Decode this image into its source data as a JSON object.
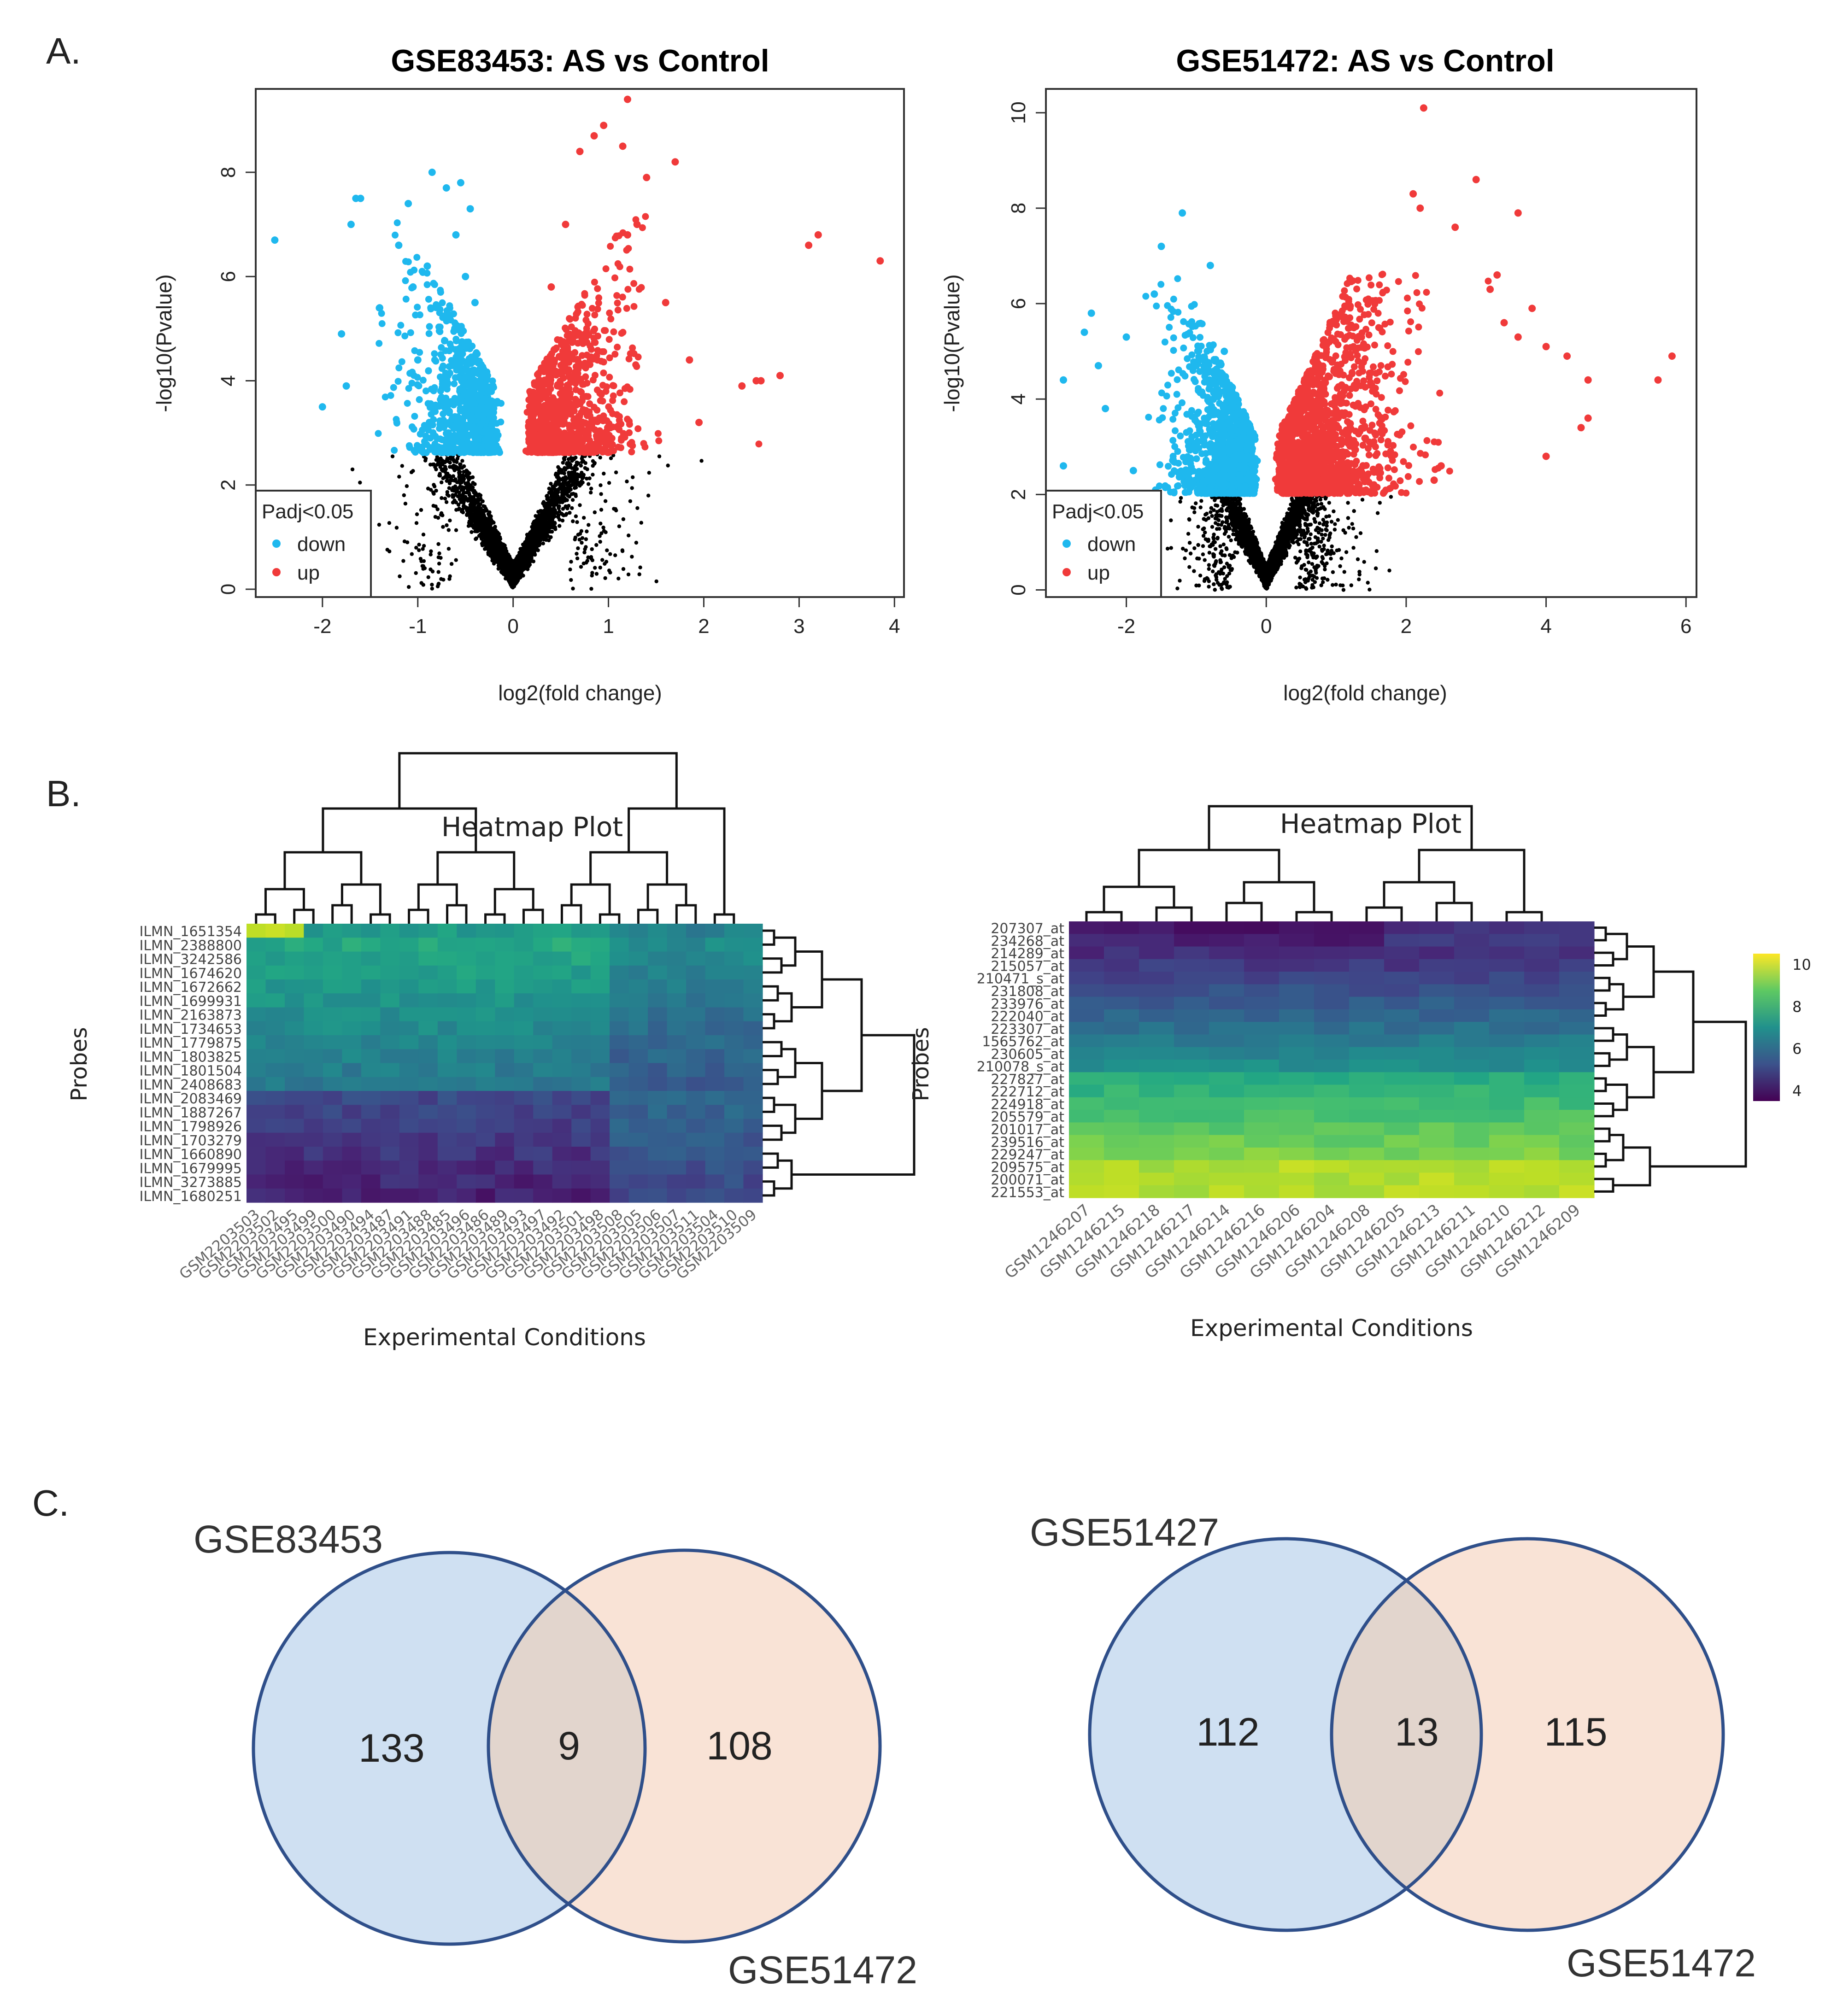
{
  "figure": {
    "panel_labels": [
      "A.",
      "B.",
      "C."
    ]
  },
  "chart_data": [
    {
      "type": "scatter",
      "name": "volcano-gse83453",
      "title": "GSE83453: AS vs Control",
      "xlabel": "log2(fold change)",
      "ylabel": "-log10(Pvalue)",
      "xlim": [
        -2.7,
        4.1
      ],
      "ylim": [
        -0.15,
        9.6
      ],
      "xticks": [
        -2,
        -1,
        0,
        1,
        2,
        3,
        4
      ],
      "yticks": [
        0,
        2,
        4,
        6,
        8
      ],
      "threshold_p": 2.6,
      "legend": {
        "title": "Padj<0.05",
        "entries": [
          "down",
          "up"
        ],
        "position": "bottom-left"
      },
      "colors": {
        "down": "#1fb8ee",
        "up": "#f03a3a",
        "ns": "#000000"
      },
      "series": [
        {
          "name": "down",
          "points": [
            [
              -2.5,
              6.7
            ],
            [
              -2.0,
              3.5
            ],
            [
              -1.8,
              4.9
            ],
            [
              -1.75,
              3.9
            ],
            [
              -1.65,
              7.5
            ],
            [
              -1.7,
              7.0
            ],
            [
              -1.6,
              7.5
            ],
            [
              -1.4,
              5.4
            ],
            [
              -1.2,
              6.6
            ],
            [
              -1.1,
              7.4
            ],
            [
              -1.05,
              5.8
            ],
            [
              -1.0,
              4.4
            ],
            [
              -0.9,
              6.2
            ],
            [
              -0.85,
              8.0
            ],
            [
              -0.7,
              7.7
            ],
            [
              -0.6,
              6.8
            ],
            [
              -0.55,
              7.8
            ],
            [
              -0.5,
              6.0
            ],
            [
              -0.45,
              7.3
            ],
            [
              -0.4,
              5.5
            ]
          ],
          "count": 750
        },
        {
          "name": "up",
          "points": [
            [
              3.85,
              6.3
            ],
            [
              3.2,
              6.8
            ],
            [
              3.1,
              6.6
            ],
            [
              2.8,
              4.1
            ],
            [
              2.6,
              4.0
            ],
            [
              2.55,
              4.0
            ],
            [
              2.4,
              3.9
            ],
            [
              1.95,
              3.2
            ],
            [
              1.85,
              4.4
            ],
            [
              1.7,
              8.2
            ],
            [
              1.6,
              5.5
            ],
            [
              1.4,
              7.9
            ],
            [
              1.3,
              7.0
            ],
            [
              1.2,
              6.8
            ],
            [
              1.15,
              8.5
            ],
            [
              0.95,
              8.9
            ],
            [
              0.85,
              8.7
            ],
            [
              0.7,
              8.4
            ],
            [
              0.55,
              7.0
            ],
            [
              0.4,
              5.8
            ],
            [
              1.2,
              9.4
            ]
          ],
          "count": 850
        }
      ]
    },
    {
      "type": "scatter",
      "name": "volcano-gse51472",
      "title": "GSE51472: AS vs Control",
      "xlabel": "log2(fold change)",
      "ylabel": "-log10(Pvalue)",
      "xlim": [
        -3.15,
        6.15
      ],
      "ylim": [
        -0.15,
        10.5
      ],
      "xticks": [
        -2,
        0,
        2,
        4,
        6
      ],
      "yticks": [
        0,
        2,
        4,
        6,
        8,
        10
      ],
      "threshold_p": 2.0,
      "legend": {
        "title": "Padj<0.05",
        "entries": [
          "down",
          "up"
        ],
        "position": "bottom-left"
      },
      "colors": {
        "down": "#1fb8ee",
        "up": "#f03a3a",
        "ns": "#000000"
      },
      "series": [
        {
          "name": "down",
          "points": [
            [
              -2.9,
              2.6
            ],
            [
              -2.9,
              4.4
            ],
            [
              -2.6,
              5.4
            ],
            [
              -2.5,
              5.8
            ],
            [
              -2.4,
              4.7
            ],
            [
              -2.3,
              3.8
            ],
            [
              -2.0,
              5.3
            ],
            [
              -1.9,
              2.5
            ],
            [
              -1.6,
              6.2
            ],
            [
              -1.5,
              7.2
            ],
            [
              -1.2,
              7.9
            ],
            [
              -0.8,
              6.8
            ],
            [
              -0.6,
              5.0
            ]
          ],
          "count": 1100
        },
        {
          "name": "up",
          "points": [
            [
              2.25,
              10.1
            ],
            [
              2.1,
              8.3
            ],
            [
              2.2,
              8.0
            ],
            [
              2.7,
              7.6
            ],
            [
              3.0,
              8.6
            ],
            [
              3.6,
              7.9
            ],
            [
              3.3,
              6.6
            ],
            [
              3.2,
              6.3
            ],
            [
              3.4,
              5.6
            ],
            [
              3.8,
              5.9
            ],
            [
              3.6,
              5.3
            ],
            [
              4.0,
              5.1
            ],
            [
              4.3,
              4.9
            ],
            [
              4.6,
              4.4
            ],
            [
              4.6,
              3.6
            ],
            [
              5.6,
              4.4
            ],
            [
              5.8,
              4.9
            ],
            [
              4.5,
              3.4
            ],
            [
              4.0,
              2.8
            ],
            [
              2.4,
              2.3
            ],
            [
              2.5,
              2.6
            ]
          ],
          "count": 1400
        }
      ]
    },
    {
      "type": "heatmap",
      "name": "heatmap-gse83453",
      "title": "Heatmap Plot",
      "xlabel": "Experimental Conditions",
      "ylabel": "Probes",
      "rows": [
        "ILMN_1651354",
        "ILMN_2388800",
        "ILMN_3242586",
        "ILMN_1674620",
        "ILMN_1672662",
        "ILMN_1699931",
        "ILMN_2163873",
        "ILMN_1734653",
        "ILMN_1779875",
        "ILMN_1803825",
        "ILMN_1801504",
        "ILMN_2408683",
        "ILMN_2083469",
        "ILMN_1887267",
        "ILMN_1798926",
        "ILMN_1703279",
        "ILMN_1660890",
        "ILMN_1679995",
        "ILMN_3273885",
        "ILMN_1680251"
      ],
      "columns": [
        "GSM2203503",
        "GSM2203502",
        "GSM2203495",
        "GSM2203499",
        "GSM2203500",
        "GSM2203490",
        "GSM2203494",
        "GSM2203487",
        "GSM2203491",
        "GSM2203488",
        "GSM2203485",
        "GSM2203496",
        "GSM2203486",
        "GSM2203489",
        "GSM2203493",
        "GSM2203497",
        "GSM2203492",
        "GSM2203501",
        "GSM2203498",
        "GSM2203508",
        "GSM2203505",
        "GSM2203506",
        "GSM2203507",
        "GSM2203511",
        "GSM2203504",
        "GSM2203510",
        "GSM2203509"
      ]
    },
    {
      "type": "heatmap",
      "name": "heatmap-gse51472",
      "title": "Heatmap Plot",
      "xlabel": "Experimental Conditions",
      "ylabel": "Probes",
      "rows": [
        "207307_at",
        "234268_at",
        "214289_at",
        "215057_at",
        "210471_s_at",
        "231808_at",
        "233976_at",
        "222040_at",
        "223307_at",
        "1565762_at",
        "230605_at",
        "210078_s_at",
        "227827_at",
        "222712_at",
        "224918_at",
        "205579_at",
        "201017_at",
        "239516_at",
        "229247_at",
        "209575_at",
        "200071_at",
        "221553_at"
      ],
      "columns": [
        "GSM1246207",
        "GSM1246215",
        "GSM1246218",
        "GSM1246217",
        "GSM1246214",
        "GSM1246216",
        "GSM1246206",
        "GSM1246204",
        "GSM1246208",
        "GSM1246205",
        "GSM1246213",
        "GSM1246211",
        "GSM1246210",
        "GSM1246212",
        "GSM1246209"
      ],
      "colorbar": {
        "ticks": [
          10,
          8,
          6,
          4
        ],
        "range": [
          3.5,
          10.5
        ]
      }
    },
    {
      "type": "venn",
      "name": "venn-left",
      "sets": [
        "GSE83453",
        "GSE51472"
      ],
      "values": {
        "only_a": 133,
        "both": 9,
        "only_b": 108
      }
    },
    {
      "type": "venn",
      "name": "venn-right",
      "sets": [
        "GSE51427",
        "GSE51472"
      ],
      "values": {
        "only_a": 112,
        "both": 13,
        "only_b": 115
      }
    }
  ]
}
